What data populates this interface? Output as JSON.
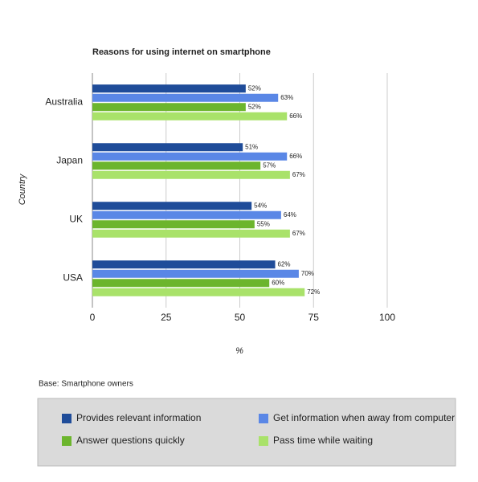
{
  "chart_data": {
    "type": "hbar",
    "title": "Reasons for using internet on smartphone",
    "xlabel": "%",
    "ylabel": "Country",
    "note": "Base: Smartphone owners",
    "categories": [
      "Australia",
      "Japan",
      "UK",
      "USA"
    ],
    "series": [
      {
        "name": "Provides relevant information",
        "color": "#1f4c99",
        "values": [
          52,
          51,
          54,
          62
        ],
        "value_labels": [
          "52%",
          "51%",
          "54%",
          "62%"
        ]
      },
      {
        "name": "Get information when away from computer",
        "color": "#5a87e6",
        "values": [
          63,
          66,
          64,
          70
        ],
        "value_labels": [
          "63%",
          "66%",
          "64%",
          "70%"
        ]
      },
      {
        "name": "Answer questions quickly",
        "color": "#6cb52d",
        "values": [
          52,
          57,
          55,
          60
        ],
        "value_labels": [
          "52%",
          "57%",
          "55%",
          "60%"
        ]
      },
      {
        "name": "Pass time while waiting",
        "color": "#a9e26a",
        "values": [
          66,
          67,
          67,
          72
        ],
        "value_labels": [
          "66%",
          "67%",
          "67%",
          "72%"
        ]
      }
    ],
    "xlim": [
      0,
      100
    ],
    "xticks": [
      0,
      25,
      50,
      75,
      100
    ],
    "grid": true,
    "legend": "bottom"
  }
}
